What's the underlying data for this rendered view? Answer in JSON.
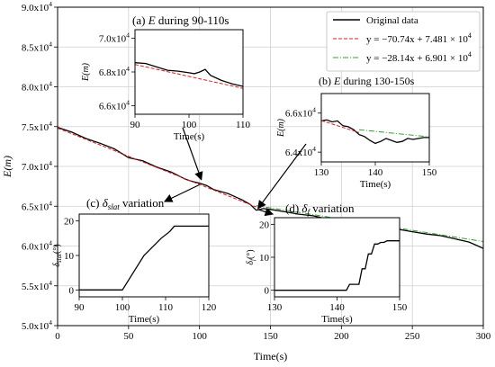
{
  "chart_data": [
    {
      "id": "main",
      "type": "line",
      "xlabel": "Time(s)",
      "ylabel": "E(m)",
      "xlim": [
        0,
        300
      ],
      "ylim": [
        50000,
        90000
      ],
      "xticks": [
        0,
        50,
        100,
        150,
        200,
        250,
        300
      ],
      "xtick_labels": [
        "0",
        "50",
        "100",
        "150",
        "200",
        "250",
        "300"
      ],
      "yticks": [
        50000,
        55000,
        60000,
        65000,
        70000,
        75000,
        80000,
        85000,
        90000
      ],
      "ytick_labels": [
        {
          "m": "5.0x10",
          "e": "4"
        },
        {
          "m": "5.5x10",
          "e": "4"
        },
        {
          "m": "6.0x10",
          "e": "4"
        },
        {
          "m": "6.5x10",
          "e": "4"
        },
        {
          "m": "7.0x10",
          "e": "4"
        },
        {
          "m": "7.5x10",
          "e": "4"
        },
        {
          "m": "8.0x10",
          "e": "4"
        },
        {
          "m": "8.5x10",
          "e": "4"
        },
        {
          "m": "9.0x10",
          "e": "4"
        }
      ],
      "grid": true,
      "legend": {
        "placement": "top-right",
        "entries": [
          {
            "label": "Original data",
            "style": "solid",
            "color": "#000000"
          },
          {
            "label_main": "y = −70.74x + 7.481 × 10",
            "label_exp": "4",
            "style": "dashed",
            "color": "#e41a1c"
          },
          {
            "label_main": "y = −28.14x + 6.901 × 10",
            "label_exp": "4",
            "style": "dashdot",
            "color": "#2ca02c"
          }
        ]
      },
      "series": [
        {
          "name": "Original data",
          "color": "#000000",
          "x": [
            0,
            10,
            20,
            30,
            40,
            50,
            60,
            70,
            80,
            90,
            95,
            100,
            105,
            110,
            120,
            130,
            136,
            140,
            145,
            150,
            160,
            170,
            180,
            190,
            200,
            210,
            220,
            230,
            240,
            250,
            260,
            270,
            280,
            290,
            295,
            300
          ],
          "y": [
            74900,
            74300,
            73500,
            72900,
            72200,
            71100,
            70700,
            69900,
            69300,
            68400,
            68100,
            67900,
            67600,
            67100,
            66600,
            65800,
            65200,
            64500,
            64700,
            64600,
            64300,
            64000,
            63800,
            63400,
            63200,
            62900,
            62600,
            62700,
            62100,
            61800,
            61500,
            61300,
            60900,
            60500,
            60100,
            59700
          ]
        },
        {
          "name": "y = −70.74x + 7.481 × 10^4",
          "color": "#e41a1c",
          "x": [
            0,
            140
          ],
          "y": [
            74810,
            64906
          ]
        },
        {
          "name": "y = −28.14x + 6.901 × 10^4",
          "color": "#2ca02c",
          "x": [
            140,
            300
          ],
          "y": [
            65070,
            60568
          ]
        }
      ],
      "annotations": [
        "(a) E during 90-110s",
        "(b) E during 130-150s",
        "(c) δslat variation",
        "(d) δf variation"
      ]
    },
    {
      "id": "inset_a",
      "type": "line",
      "title_prefix": "(a) ",
      "title_var": "E",
      "title_suffix": " during 90-110s",
      "xlabel": "Time(s)",
      "ylabel": "E(m)",
      "xlim": [
        90,
        110
      ],
      "ylim": [
        65500,
        70500
      ],
      "xticks": [
        90,
        100,
        110
      ],
      "xtick_labels": [
        "90",
        "100",
        "110"
      ],
      "yticks": [
        66000,
        68000,
        70000
      ],
      "ytick_labels": [
        {
          "m": "6.6x10",
          "e": "4"
        },
        {
          "m": "6.8x10",
          "e": "4"
        },
        {
          "m": "7.0x10",
          "e": "4"
        }
      ],
      "series": [
        {
          "name": "Original data",
          "color": "#000000",
          "x": [
            90,
            92,
            94,
            96,
            98,
            100,
            101,
            102,
            103,
            104,
            106,
            108,
            110
          ],
          "y": [
            68550,
            68500,
            68300,
            68100,
            68050,
            67950,
            67900,
            68000,
            68150,
            67800,
            67500,
            67300,
            67150
          ]
        },
        {
          "name": "fit",
          "color": "#e41a1c",
          "x": [
            90,
            110
          ],
          "y": [
            68440,
            67030
          ]
        }
      ]
    },
    {
      "id": "inset_b",
      "type": "line",
      "title_prefix": "(b) ",
      "title_var": "E",
      "title_suffix": " during 130-150s",
      "xlabel": "Time(s)",
      "ylabel": "E(m)",
      "xlim": [
        130,
        150
      ],
      "ylim": [
        63500,
        67000
      ],
      "xticks": [
        130,
        140,
        150
      ],
      "xtick_labels": [
        "130",
        "140",
        "150"
      ],
      "yticks": [
        64000,
        66000
      ],
      "ytick_labels": [
        {
          "m": "6.4x10",
          "e": "4"
        },
        {
          "m": "6.6x10",
          "e": "4"
        }
      ],
      "series": [
        {
          "name": "Original data",
          "color": "#000000",
          "x": [
            130,
            131,
            132,
            133,
            134,
            135,
            136,
            137,
            138,
            139,
            140,
            141,
            142,
            143,
            144,
            145,
            146,
            147,
            148,
            149,
            150
          ],
          "y": [
            65600,
            65650,
            65550,
            65600,
            65350,
            65300,
            65150,
            64900,
            64800,
            64600,
            64450,
            64550,
            64700,
            64600,
            64500,
            64550,
            64700,
            64650,
            64700,
            64750,
            64750
          ]
        },
        {
          "name": "fit1",
          "color": "#e41a1c",
          "x": [
            130,
            137
          ],
          "y": [
            65620,
            65000
          ]
        },
        {
          "name": "fit2",
          "color": "#2ca02c",
          "x": [
            137,
            150
          ],
          "y": [
            65150,
            64780
          ]
        }
      ]
    },
    {
      "id": "inset_c",
      "type": "line",
      "title_prefix": "(c) ",
      "title_var": "δ",
      "title_sub": "slat",
      "title_suffix": " variation",
      "xlabel": "Time(s)",
      "ylabel_var": "δ",
      "ylabel_sub": "slat",
      "ylabel_unit": "(°)",
      "xlim": [
        90,
        120
      ],
      "ylim": [
        -2,
        22
      ],
      "xticks": [
        90,
        100,
        110,
        120
      ],
      "xtick_labels": [
        "90",
        "100",
        "110",
        "120"
      ],
      "yticks": [
        0,
        10,
        20
      ],
      "ytick_labels": [
        "0",
        "10",
        "20"
      ],
      "series": [
        {
          "name": "δslat",
          "color": "#000000",
          "x": [
            90,
            100,
            101,
            103,
            105,
            107,
            109,
            111,
            112,
            120
          ],
          "y": [
            0,
            0,
            2,
            6,
            10,
            12.5,
            15,
            17,
            18.5,
            18.5
          ]
        }
      ]
    },
    {
      "id": "inset_d",
      "type": "line",
      "title_prefix": "(d) ",
      "title_var": "δ",
      "title_sub": "f",
      "title_suffix": " variation",
      "xlabel": "Time(s)",
      "ylabel_var": "δ",
      "ylabel_sub": "f",
      "ylabel_unit": "(°)",
      "xlim": [
        130,
        150
      ],
      "ylim": [
        -2,
        22
      ],
      "xticks": [
        130,
        140,
        150
      ],
      "xtick_labels": [
        "130",
        "140",
        "150"
      ],
      "yticks": [
        0,
        10,
        20
      ],
      "ytick_labels": [
        "0",
        "10",
        "20"
      ],
      "series": [
        {
          "name": "δf",
          "color": "#000000",
          "x": [
            130,
            141.5,
            142,
            143.5,
            144,
            144.5,
            145,
            145.5,
            146,
            146.5,
            147,
            147.5,
            148,
            150
          ],
          "y": [
            0,
            0,
            1.8,
            1.8,
            6.5,
            6.5,
            11,
            11,
            14,
            14,
            14.5,
            14.5,
            15,
            15
          ]
        }
      ]
    }
  ]
}
